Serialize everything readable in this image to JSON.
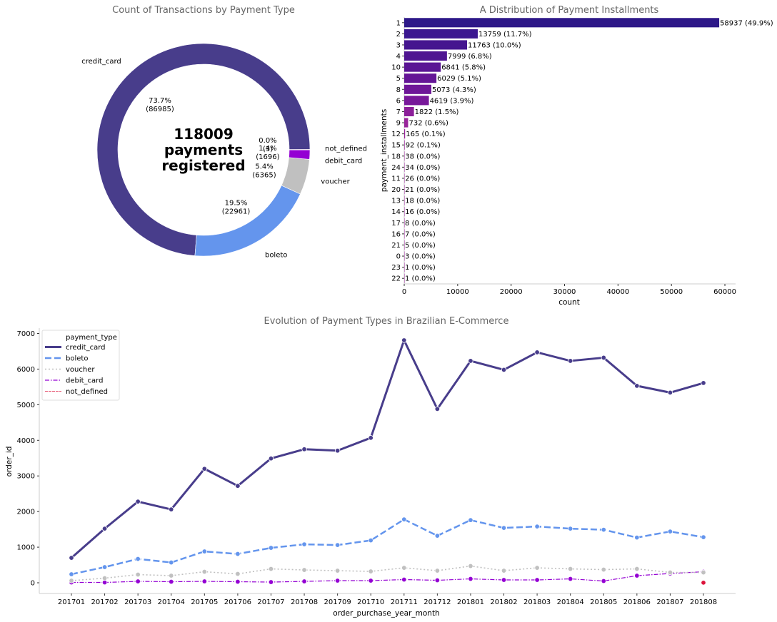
{
  "chart_data": [
    {
      "type": "pie",
      "title": "Count of Transactions by Payment Type",
      "center_label": [
        "118009",
        "payments",
        "registered"
      ],
      "slices": [
        {
          "label": "credit_card",
          "value": 86985,
          "pct_label": "73.7%",
          "count_label": "(86985)",
          "color": "#483D8B"
        },
        {
          "label": "boleto",
          "value": 22961,
          "pct_label": "19.5%",
          "count_label": "(22961)",
          "color": "#6495ED"
        },
        {
          "label": "voucher",
          "value": 6365,
          "pct_label": "5.4%",
          "count_label": "(6365)",
          "color": "#C0C0C0"
        },
        {
          "label": "debit_card",
          "value": 1696,
          "pct_label": "1.4%",
          "count_label": "(1696)",
          "color": "#9400D3"
        },
        {
          "label": "not_defined",
          "value": 3,
          "pct_label": "0.0%",
          "count_label": "(3)",
          "color": "#DC143C"
        }
      ]
    },
    {
      "type": "bar",
      "orientation": "horizontal",
      "title": "A Distribution of Payment Installments",
      "xlabel": "count",
      "ylabel": "payment_installments",
      "xlim": [
        0,
        62000
      ],
      "xticks": [
        0,
        10000,
        20000,
        30000,
        40000,
        50000,
        60000
      ],
      "categories": [
        "1",
        "2",
        "3",
        "4",
        "10",
        "5",
        "8",
        "6",
        "7",
        "9",
        "12",
        "15",
        "18",
        "24",
        "11",
        "20",
        "13",
        "14",
        "17",
        "16",
        "21",
        "0",
        "23",
        "22"
      ],
      "values": [
        58937,
        13759,
        11763,
        7999,
        6841,
        6029,
        5073,
        4619,
        1822,
        732,
        165,
        92,
        38,
        34,
        26,
        21,
        18,
        16,
        8,
        7,
        5,
        3,
        1,
        1
      ],
      "data_labels": [
        "58937 (49.9%)",
        "13759 (11.7%)",
        "11763 (10.0%)",
        "7999 (6.8%)",
        "6841 (5.8%)",
        "6029 (5.1%)",
        "5073 (4.3%)",
        "4619 (3.9%)",
        "1822 (1.5%)",
        "732 (0.6%)",
        "165 (0.1%)",
        "92 (0.1%)",
        "38 (0.0%)",
        "34 (0.0%)",
        "26 (0.0%)",
        "21 (0.0%)",
        "18 (0.0%)",
        "16 (0.0%)",
        "8 (0.0%)",
        "7 (0.0%)",
        "5 (0.0%)",
        "3 (0.0%)",
        "1 (0.0%)",
        "1 (0.0%)"
      ],
      "colors": [
        "#2D1888",
        "#3B1790",
        "#45168F",
        "#4F1591",
        "#5A1594",
        "#641596",
        "#6E1698",
        "#78189A",
        "#8C1E99",
        "#98259A"
      ]
    },
    {
      "type": "line",
      "title": "Evolution of Payment Types in Brazilian E-Commerce",
      "xlabel": "order_purchase_year_month",
      "ylabel": "order_id",
      "ylim": [
        -300,
        7150
      ],
      "yticks": [
        0,
        1000,
        2000,
        3000,
        4000,
        5000,
        6000,
        7000
      ],
      "legend_title": "payment_type",
      "legend_position": "top-left",
      "categories": [
        "201701",
        "201702",
        "201703",
        "201704",
        "201705",
        "201706",
        "201707",
        "201708",
        "201709",
        "201710",
        "201711",
        "201712",
        "201801",
        "201802",
        "201803",
        "201804",
        "201805",
        "201806",
        "201807",
        "201808"
      ],
      "series": [
        {
          "name": "credit_card",
          "color": "#483D8B",
          "style": "solid",
          "values": [
            700,
            1520,
            2280,
            2060,
            3200,
            2720,
            3490,
            3750,
            3710,
            4070,
            6810,
            4880,
            6230,
            5980,
            6470,
            6230,
            6320,
            5530,
            5340,
            5610
          ]
        },
        {
          "name": "boleto",
          "color": "#6495ED",
          "style": "dashed",
          "values": [
            240,
            440,
            670,
            570,
            880,
            810,
            980,
            1080,
            1060,
            1190,
            1780,
            1320,
            1760,
            1540,
            1580,
            1520,
            1490,
            1270,
            1440,
            1280
          ]
        },
        {
          "name": "voucher",
          "color": "#C0C0C0",
          "style": "dotted",
          "values": [
            60,
            130,
            230,
            200,
            310,
            250,
            390,
            360,
            340,
            320,
            420,
            340,
            470,
            340,
            420,
            390,
            370,
            390,
            290,
            290
          ]
        },
        {
          "name": "debit_card",
          "color": "#9400D3",
          "style": "dashdot",
          "values": [
            10,
            10,
            40,
            30,
            40,
            30,
            20,
            40,
            60,
            60,
            90,
            70,
            110,
            80,
            80,
            110,
            50,
            200,
            260,
            310
          ]
        },
        {
          "name": "not_defined",
          "color": "#DC143C",
          "style": "thin",
          "values": [
            null,
            null,
            null,
            null,
            null,
            null,
            null,
            null,
            null,
            null,
            null,
            null,
            null,
            null,
            null,
            null,
            null,
            null,
            null,
            3
          ]
        }
      ]
    }
  ]
}
